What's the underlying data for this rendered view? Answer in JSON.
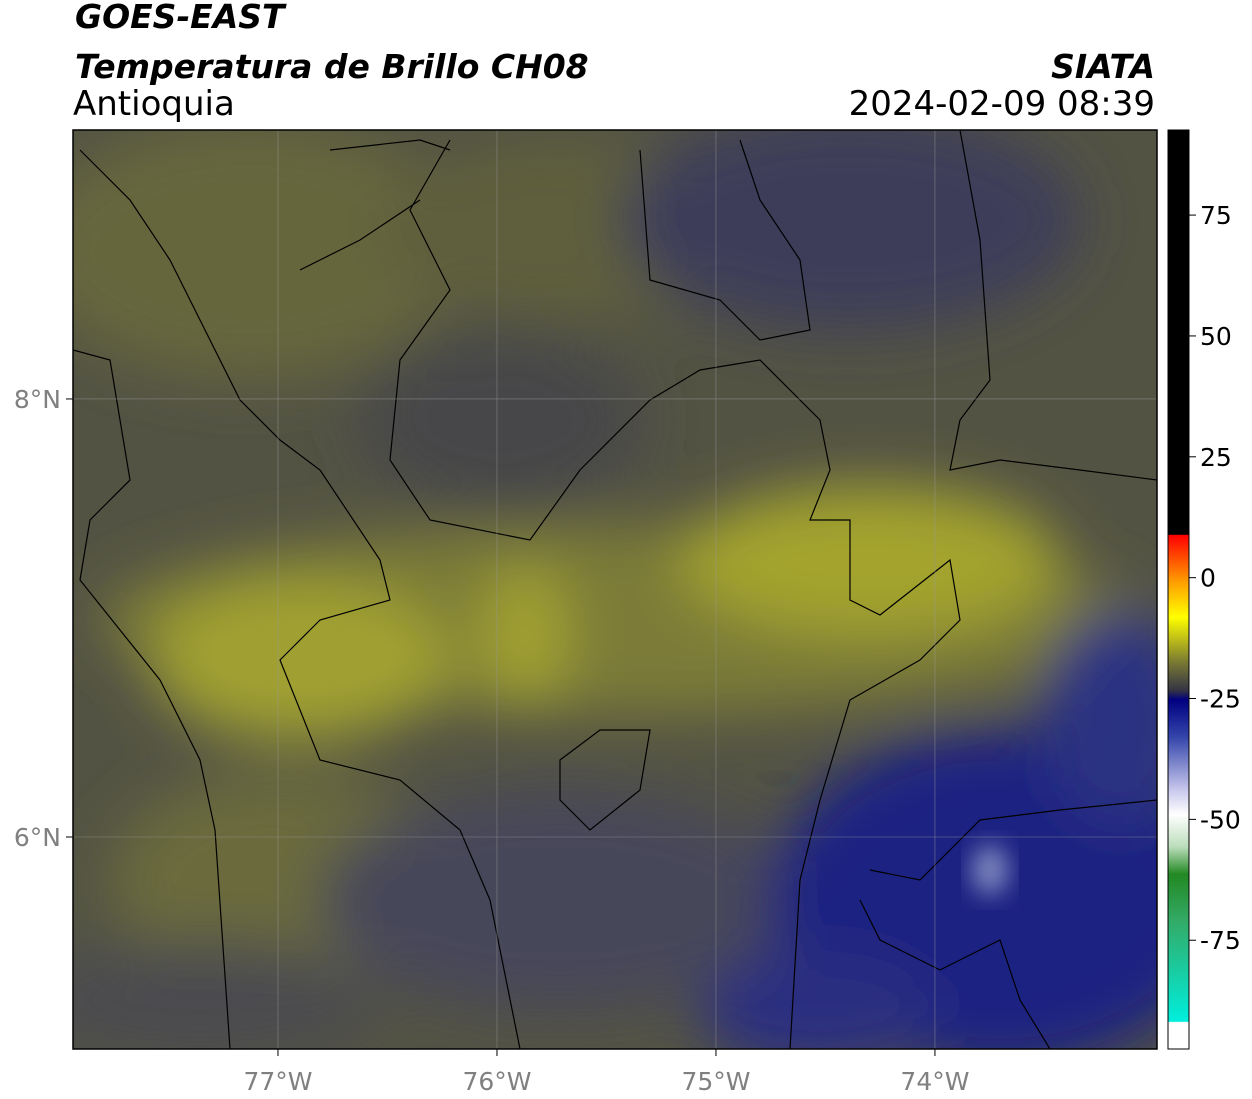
{
  "title": "GOES-EAST",
  "subtitle": "Temperatura de Brillo CH08",
  "region": "Antioquia",
  "source": "SIATA",
  "datetime": "2024-02-09 08:39",
  "map": {
    "xlim": [
      -77.936,
      -72.986
    ],
    "ylim": [
      5.032,
      9.228
    ],
    "xticks": [
      {
        "value": -77,
        "label": "77°W"
      },
      {
        "value": -76,
        "label": "76°W"
      },
      {
        "value": -75,
        "label": "75°W"
      },
      {
        "value": -74,
        "label": "74°W"
      }
    ],
    "yticks": [
      {
        "value": 6,
        "label": "6°N"
      },
      {
        "value": 8,
        "label": "8°N"
      }
    ],
    "grid": true
  },
  "colorbar": {
    "lim": [
      -97.5,
      92.6
    ],
    "ticks": [
      -75,
      -50,
      -25,
      0,
      25,
      50,
      75
    ]
  }
}
